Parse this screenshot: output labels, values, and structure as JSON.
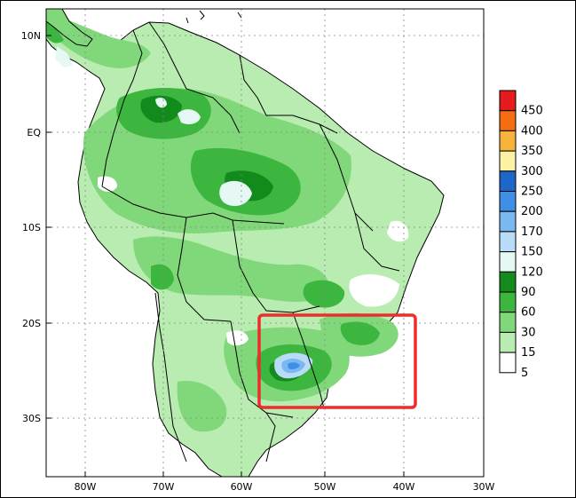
{
  "map": {
    "lat_labels": [
      "10N",
      "EQ",
      "10S",
      "20S",
      "30S"
    ],
    "lon_labels": [
      "80W",
      "70W",
      "60W",
      "50W",
      "40W",
      "30W"
    ]
  },
  "legend": {
    "labels": [
      "450",
      "400",
      "350",
      "300",
      "250",
      "200",
      "170",
      "150",
      "120",
      "90",
      "60",
      "30",
      "15",
      "5"
    ],
    "colors": [
      "#e41a1c",
      "#f46d10",
      "#f7b23b",
      "#fdf1a6",
      "#1f66c9",
      "#3f8fe5",
      "#7cb8f0",
      "#b8dcf7",
      "#e6f8f3",
      "#138a1c",
      "#3cb63e",
      "#80d87a",
      "#b9ecb1",
      "#ffffff"
    ]
  },
  "highlight": {
    "color": "#ee2c2c"
  }
}
